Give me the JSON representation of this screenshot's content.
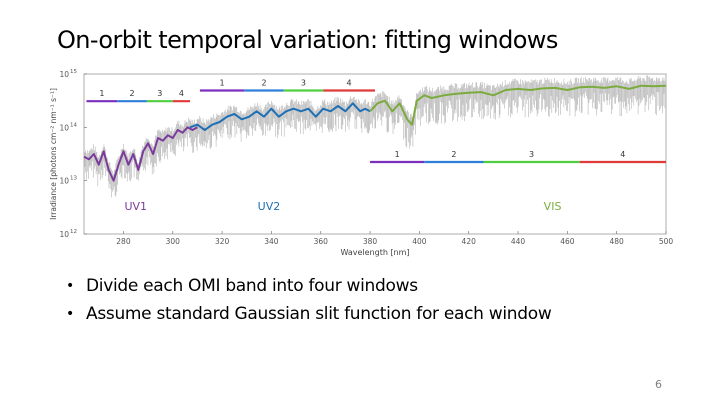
{
  "slide": {
    "title": "On-orbit temporal variation: fitting windows",
    "bullets": [
      "Divide each OMI band into four windows",
      "Assume standard Gaussian slit function for each window"
    ],
    "page_number": "6"
  },
  "chart_data": {
    "type": "line",
    "title": "",
    "xlabel": "Wavelength [nm]",
    "ylabel": "Irradiance [photons cm⁻² nm⁻¹ s⁻¹]",
    "xlim": [
      264,
      500
    ],
    "ylim_log10": [
      12,
      15
    ],
    "y_scale": "log",
    "x_ticks": [
      280,
      300,
      320,
      340,
      360,
      380,
      400,
      420,
      440,
      460,
      480,
      500
    ],
    "y_tick_labels": [
      {
        "base": "10",
        "exp": "12",
        "log": 12
      },
      {
        "base": "10",
        "exp": "13",
        "log": 13
      },
      {
        "base": "10",
        "exp": "14",
        "log": 14
      },
      {
        "base": "10",
        "exp": "15",
        "log": 15
      }
    ],
    "grid": false,
    "colors": {
      "background_spectrum": "#b4b4b4",
      "uv1": "#7b3b9a",
      "uv2": "#1f6fb4",
      "vis": "#7bab3e",
      "window1": "#7b2fbe",
      "window2": "#2f7fd8",
      "window3": "#4fcf3f",
      "window4": "#e03a3a"
    },
    "band_labels": [
      {
        "name": "UV1",
        "x": 285,
        "color": "#7b3b9a"
      },
      {
        "name": "UV2",
        "x": 339,
        "color": "#1f6fb4"
      },
      {
        "name": "VIS",
        "x": 454,
        "color": "#7bab3e"
      }
    ],
    "bands": [
      {
        "name": "UV1",
        "color": "#7b3b9a",
        "spectrum": [
          [
            264,
            13.45
          ],
          [
            266,
            13.4
          ],
          [
            268,
            13.5
          ],
          [
            270,
            13.3
          ],
          [
            272,
            13.55
          ],
          [
            274,
            13.2
          ],
          [
            276,
            13.0
          ],
          [
            278,
            13.3
          ],
          [
            280,
            13.55
          ],
          [
            282,
            13.3
          ],
          [
            284,
            13.5
          ],
          [
            286,
            13.2
          ],
          [
            288,
            13.55
          ],
          [
            290,
            13.7
          ],
          [
            292,
            13.5
          ],
          [
            294,
            13.8
          ],
          [
            296,
            13.75
          ],
          [
            298,
            13.85
          ],
          [
            300,
            13.8
          ],
          [
            302,
            13.95
          ],
          [
            304,
            13.9
          ],
          [
            306,
            14.0
          ],
          [
            308,
            13.95
          ],
          [
            310,
            14.0
          ]
        ],
        "windows": [
          {
            "label": "1",
            "x": [
              265,
              277.5
            ],
            "y": 14.49
          },
          {
            "label": "2",
            "x": [
              277.5,
              289.5
            ],
            "y": 14.49
          },
          {
            "label": "3",
            "x": [
              289.5,
              300
            ],
            "y": 14.49
          },
          {
            "label": "4",
            "x": [
              300,
              307
            ],
            "y": 14.49
          }
        ]
      },
      {
        "name": "UV2",
        "color": "#1f6fb4",
        "spectrum": [
          [
            307,
            14.0
          ],
          [
            310,
            14.05
          ],
          [
            313,
            13.95
          ],
          [
            316,
            14.05
          ],
          [
            319,
            14.1
          ],
          [
            322,
            14.2
          ],
          [
            325,
            14.25
          ],
          [
            328,
            14.15
          ],
          [
            331,
            14.2
          ],
          [
            334,
            14.3
          ],
          [
            337,
            14.2
          ],
          [
            340,
            14.35
          ],
          [
            343,
            14.2
          ],
          [
            346,
            14.3
          ],
          [
            349,
            14.35
          ],
          [
            352,
            14.3
          ],
          [
            355,
            14.35
          ],
          [
            358,
            14.2
          ],
          [
            361,
            14.35
          ],
          [
            364,
            14.3
          ],
          [
            367,
            14.4
          ],
          [
            370,
            14.3
          ],
          [
            373,
            14.45
          ],
          [
            376,
            14.3
          ],
          [
            378,
            14.35
          ],
          [
            380,
            14.3
          ]
        ],
        "windows": [
          {
            "label": "1",
            "x": [
              311,
              329
            ],
            "y": 14.69
          },
          {
            "label": "2",
            "x": [
              329,
              345
            ],
            "y": 14.69
          },
          {
            "label": "3",
            "x": [
              345,
              361
            ],
            "y": 14.69
          },
          {
            "label": "4",
            "x": [
              361,
              382
            ],
            "y": 14.69
          }
        ]
      },
      {
        "name": "VIS",
        "color": "#7bab3e",
        "spectrum": [
          [
            380,
            14.3
          ],
          [
            383,
            14.45
          ],
          [
            386,
            14.5
          ],
          [
            389,
            14.3
          ],
          [
            392,
            14.45
          ],
          [
            395,
            14.15
          ],
          [
            397,
            14.05
          ],
          [
            399,
            14.5
          ],
          [
            402,
            14.6
          ],
          [
            405,
            14.55
          ],
          [
            410,
            14.6
          ],
          [
            415,
            14.63
          ],
          [
            420,
            14.65
          ],
          [
            425,
            14.66
          ],
          [
            430,
            14.6
          ],
          [
            435,
            14.7
          ],
          [
            440,
            14.72
          ],
          [
            445,
            14.7
          ],
          [
            450,
            14.73
          ],
          [
            455,
            14.74
          ],
          [
            460,
            14.7
          ],
          [
            465,
            14.75
          ],
          [
            470,
            14.76
          ],
          [
            475,
            14.74
          ],
          [
            480,
            14.77
          ],
          [
            485,
            14.72
          ],
          [
            490,
            14.78
          ],
          [
            495,
            14.77
          ],
          [
            500,
            14.78
          ]
        ],
        "windows": [
          {
            "label": "1",
            "x": [
              380,
              402
            ],
            "y": 13.35
          },
          {
            "label": "2",
            "x": [
              402,
              426
            ],
            "y": 13.35
          },
          {
            "label": "3",
            "x": [
              426,
              465
            ],
            "y": 13.35
          },
          {
            "label": "4",
            "x": [
              465,
              500
            ],
            "y": 13.35
          }
        ]
      }
    ]
  }
}
